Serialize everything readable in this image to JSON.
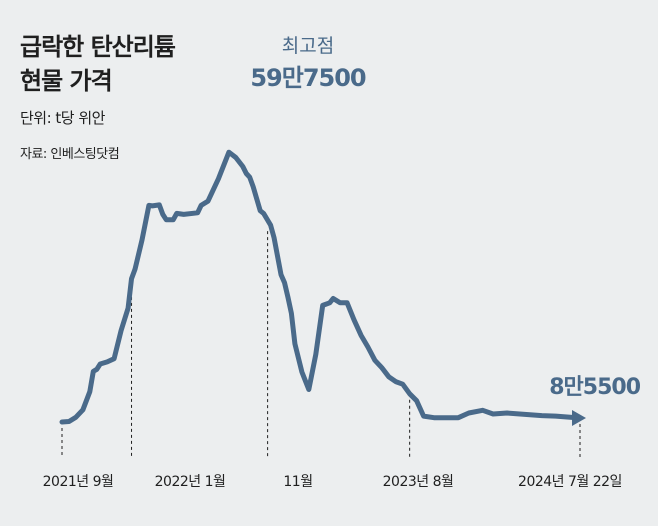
{
  "header": {
    "title_line1": "급락한 탄산리튬",
    "title_line2": "현물 가격",
    "unit": "단위: t당 위안",
    "source": "자료: 인베스팅닷컴"
  },
  "colors": {
    "line": "#4a6a8a",
    "text": "#1f1f1f",
    "background": "#eceeef"
  },
  "chart_data": {
    "type": "line",
    "title": "급락한 탄산리튬 현물 가격",
    "ylabel": "단위: t당 위안",
    "grid": false,
    "axis_ticks": [
      "2021년 9월",
      "2022년 1월",
      "11월",
      "2023년 8월",
      "2024년 7월 22일"
    ],
    "ylim": [
      0,
      620000
    ],
    "series": [
      {
        "values": [
          [
            "2021-09-13",
            78000
          ],
          [
            "2021-09-27",
            79000
          ],
          [
            "2021-10-11",
            87000
          ],
          [
            "2021-10-25",
            101000
          ],
          [
            "2021-11-08",
            135000
          ],
          [
            "2021-11-15",
            173000
          ],
          [
            "2021-11-22",
            177000
          ],
          [
            "2021-11-29",
            187000
          ],
          [
            "2021-12-13",
            191000
          ],
          [
            "2021-12-27",
            197000
          ],
          [
            "2022-01-10",
            250000
          ],
          [
            "2022-01-24",
            292000
          ],
          [
            "2022-01-31",
            347000
          ],
          [
            "2022-02-07",
            365000
          ],
          [
            "2022-02-21",
            420000
          ],
          [
            "2022-03-07",
            485000
          ],
          [
            "2022-03-14",
            484000
          ],
          [
            "2022-03-28",
            486000
          ],
          [
            "2022-04-04",
            468000
          ],
          [
            "2022-04-11",
            458000
          ],
          [
            "2022-04-25",
            458000
          ],
          [
            "2022-05-02",
            470000
          ],
          [
            "2022-05-16",
            468000
          ],
          [
            "2022-06-13",
            471000
          ],
          [
            "2022-06-20",
            485000
          ],
          [
            "2022-07-04",
            493000
          ],
          [
            "2022-07-25",
            535000
          ],
          [
            "2022-08-15",
            585000
          ],
          [
            "2022-08-29",
            575000
          ],
          [
            "2022-09-12",
            558000
          ],
          [
            "2022-09-19",
            545000
          ],
          [
            "2022-09-26",
            538000
          ],
          [
            "2022-10-03",
            520000
          ],
          [
            "2022-10-17",
            475000
          ],
          [
            "2022-10-24",
            470000
          ],
          [
            "2022-11-07",
            448000
          ],
          [
            "2022-11-14",
            424000
          ],
          [
            "2022-11-28",
            355000
          ],
          [
            "2022-12-05",
            340000
          ],
          [
            "2022-12-12",
            312000
          ],
          [
            "2022-12-19",
            282000
          ],
          [
            "2022-12-26",
            225000
          ],
          [
            "2023-01-09",
            172000
          ],
          [
            "2023-01-23",
            139000
          ],
          [
            "2023-02-06",
            205000
          ],
          [
            "2023-02-20",
            297000
          ],
          [
            "2023-03-06",
            302000
          ],
          [
            "2023-03-13",
            310000
          ],
          [
            "2023-03-27",
            302000
          ],
          [
            "2023-04-10",
            302000
          ],
          [
            "2023-04-24",
            270000
          ],
          [
            "2023-05-08",
            241000
          ],
          [
            "2023-05-22",
            219000
          ],
          [
            "2023-06-05",
            194000
          ],
          [
            "2023-06-19",
            180000
          ],
          [
            "2023-07-03",
            163000
          ],
          [
            "2023-07-17",
            154000
          ],
          [
            "2023-07-31",
            149000
          ],
          [
            "2023-08-14",
            131000
          ],
          [
            "2023-08-28",
            118000
          ],
          [
            "2023-09-11",
            89000
          ],
          [
            "2023-10-02",
            86000
          ],
          [
            "2023-11-20",
            86000
          ],
          [
            "2023-12-11",
            95000
          ],
          [
            "2024-01-08",
            100000
          ],
          [
            "2024-01-29",
            93000
          ],
          [
            "2024-02-26",
            95000
          ],
          [
            "2024-05-06",
            90000
          ],
          [
            "2024-06-03",
            89000
          ],
          [
            "2024-07-22",
            85500
          ]
        ]
      }
    ],
    "annotations": [
      {
        "date": "2022-08-29",
        "label": "최고점",
        "value_label": "59만7500"
      },
      {
        "date": "2024-07-22",
        "value_label": "8만5500"
      }
    ]
  }
}
